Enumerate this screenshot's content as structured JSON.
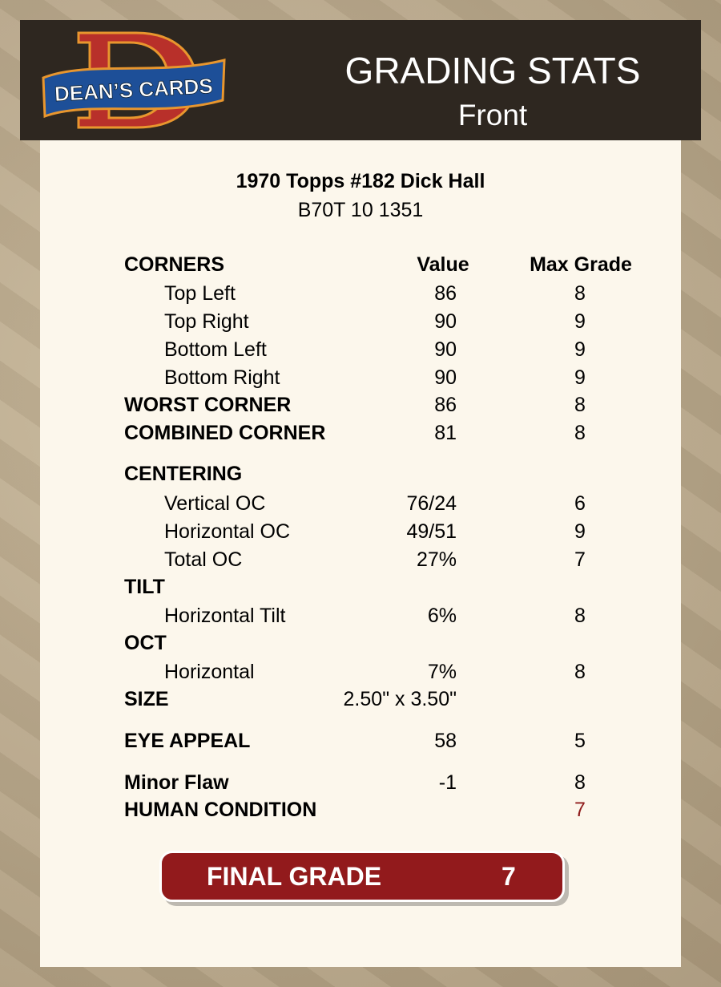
{
  "header": {
    "logo_text": "DEAN'S CARDS",
    "title": "GRADING STATS",
    "subtitle": "Front"
  },
  "card": {
    "name": "1970 Topps #182 Dick Hall",
    "cert": "B70T 10 1351"
  },
  "columns": {
    "value": "Value",
    "max_grade": "Max Grade"
  },
  "rows": [
    {
      "label": "CORNERS",
      "bold": true,
      "value": "",
      "max": "",
      "header": true
    },
    {
      "label": "Top Left",
      "bold": false,
      "value": "86",
      "max": "8"
    },
    {
      "label": "Top Right",
      "bold": false,
      "value": "90",
      "max": "9"
    },
    {
      "label": "Bottom Left",
      "bold": false,
      "value": "90",
      "max": "9"
    },
    {
      "label": "Bottom Right",
      "bold": false,
      "value": "90",
      "max": "9"
    },
    {
      "label": "WORST CORNER",
      "bold": true,
      "value": "86",
      "max": "8"
    },
    {
      "label": "COMBINED CORNER",
      "bold": true,
      "value": "81",
      "max": "8"
    },
    {
      "label": "CENTERING",
      "bold": true,
      "value": "",
      "max": ""
    },
    {
      "label": "Vertical OC",
      "bold": false,
      "value": "76/24",
      "max": "6"
    },
    {
      "label": "Horizontal OC",
      "bold": false,
      "value": "49/51",
      "max": "9"
    },
    {
      "label": "Total OC",
      "bold": false,
      "value": "27%",
      "max": "7"
    },
    {
      "label": "TILT",
      "bold": true,
      "value": "",
      "max": ""
    },
    {
      "label": "Horizontal Tilt",
      "bold": false,
      "value": "6%",
      "max": "8"
    },
    {
      "label": "OCT",
      "bold": true,
      "value": "",
      "max": ""
    },
    {
      "label": "Horizontal",
      "bold": false,
      "value": "7%",
      "max": "8"
    },
    {
      "label": "SIZE",
      "bold": true,
      "value": "2.50\" x 3.50\"",
      "max": ""
    },
    {
      "label": "EYE APPEAL",
      "bold": true,
      "value": "58",
      "max": "5"
    },
    {
      "label": "Minor Flaw",
      "bold": true,
      "value": "-1",
      "max": "8"
    },
    {
      "label": "HUMAN CONDITION",
      "bold": true,
      "value": "",
      "max": "7",
      "highlight": true
    }
  ],
  "final": {
    "label": "FINAL GRADE",
    "value": "7"
  },
  "colors": {
    "header_bg": "#2e2720",
    "panel_bg": "#fcf7ec",
    "accent_red": "#921a1c",
    "human_condition": "#8e1b1b"
  }
}
